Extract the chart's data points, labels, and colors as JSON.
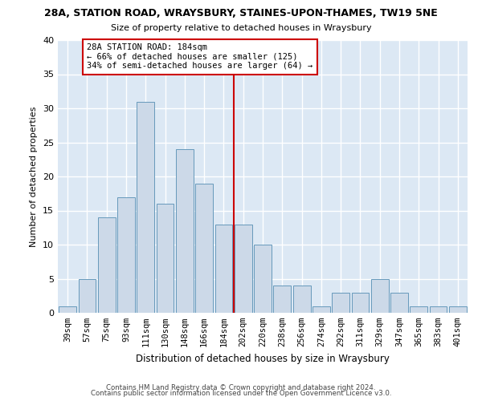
{
  "title": "28A, STATION ROAD, WRAYSBURY, STAINES-UPON-THAMES, TW19 5NE",
  "subtitle": "Size of property relative to detached houses in Wraysbury",
  "xlabel": "Distribution of detached houses by size in Wraysbury",
  "ylabel": "Number of detached properties",
  "categories": [
    "39sqm",
    "57sqm",
    "75sqm",
    "93sqm",
    "111sqm",
    "130sqm",
    "148sqm",
    "166sqm",
    "184sqm",
    "202sqm",
    "220sqm",
    "238sqm",
    "256sqm",
    "274sqm",
    "292sqm",
    "311sqm",
    "329sqm",
    "347sqm",
    "365sqm",
    "383sqm",
    "401sqm"
  ],
  "values": [
    1,
    5,
    14,
    17,
    31,
    16,
    24,
    19,
    13,
    13,
    10,
    4,
    4,
    1,
    3,
    3,
    5,
    3,
    1,
    1,
    1
  ],
  "bar_color": "#ccd9e8",
  "bar_edge_color": "#6699bb",
  "marker_index": 8,
  "marker_label": "28A STATION ROAD: 184sqm\n← 66% of detached houses are smaller (125)\n34% of semi-detached houses are larger (64) →",
  "marker_line_color": "#cc0000",
  "marker_box_color": "#cc0000",
  "ylim": [
    0,
    40
  ],
  "yticks": [
    0,
    5,
    10,
    15,
    20,
    25,
    30,
    35,
    40
  ],
  "bg_color": "#dce8f4",
  "footer1": "Contains HM Land Registry data © Crown copyright and database right 2024.",
  "footer2": "Contains public sector information licensed under the Open Government Licence v3.0."
}
